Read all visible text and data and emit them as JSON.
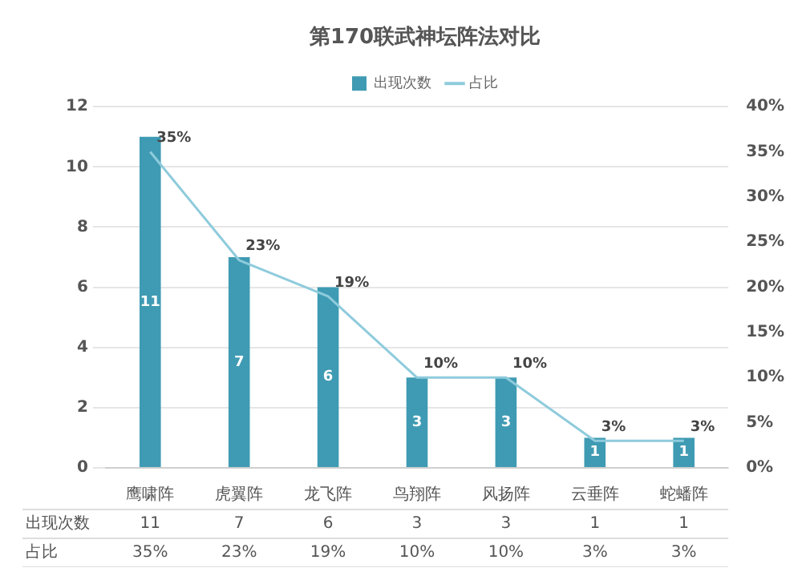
{
  "chart_data": {
    "type": "bar",
    "title": "第170联武神坛阵法对比",
    "categories": [
      "鹰啸阵",
      "虎翼阵",
      "龙飞阵",
      "鸟翔阵",
      "风扬阵",
      "云垂阵",
      "蛇蟠阵"
    ],
    "series": [
      {
        "name": "出现次数",
        "color": "#3f9bb3",
        "values": [
          11,
          7,
          6,
          3,
          3,
          1,
          1
        ],
        "value_labels": [
          "11",
          "7",
          "6",
          "3",
          "3",
          "1",
          "1"
        ]
      },
      {
        "name": "占比",
        "type": "line",
        "axis": "y2",
        "color": "#8ecbdc",
        "values": [
          35,
          23,
          19,
          10,
          10,
          3,
          3
        ],
        "value_labels": [
          "35%",
          "23%",
          "19%",
          "10%",
          "10%",
          "3%",
          "3%"
        ]
      }
    ],
    "ylim": [
      0,
      12
    ],
    "yticks": [
      0,
      2,
      4,
      6,
      8,
      10,
      12
    ],
    "y2lim": [
      0,
      40
    ],
    "y2ticks": [
      {
        "value": 0,
        "label": "0%"
      },
      {
        "value": 5,
        "label": "5%"
      },
      {
        "value": 10,
        "label": "10%"
      },
      {
        "value": 15,
        "label": "15%"
      },
      {
        "value": 20,
        "label": "20%"
      },
      {
        "value": 25,
        "label": "25%"
      },
      {
        "value": 30,
        "label": "30%"
      },
      {
        "value": 35,
        "label": "35%"
      },
      {
        "value": 40,
        "label": "40%"
      }
    ],
    "grid": "y",
    "legend": "top",
    "marker": "none",
    "data_labels": true
  }
}
